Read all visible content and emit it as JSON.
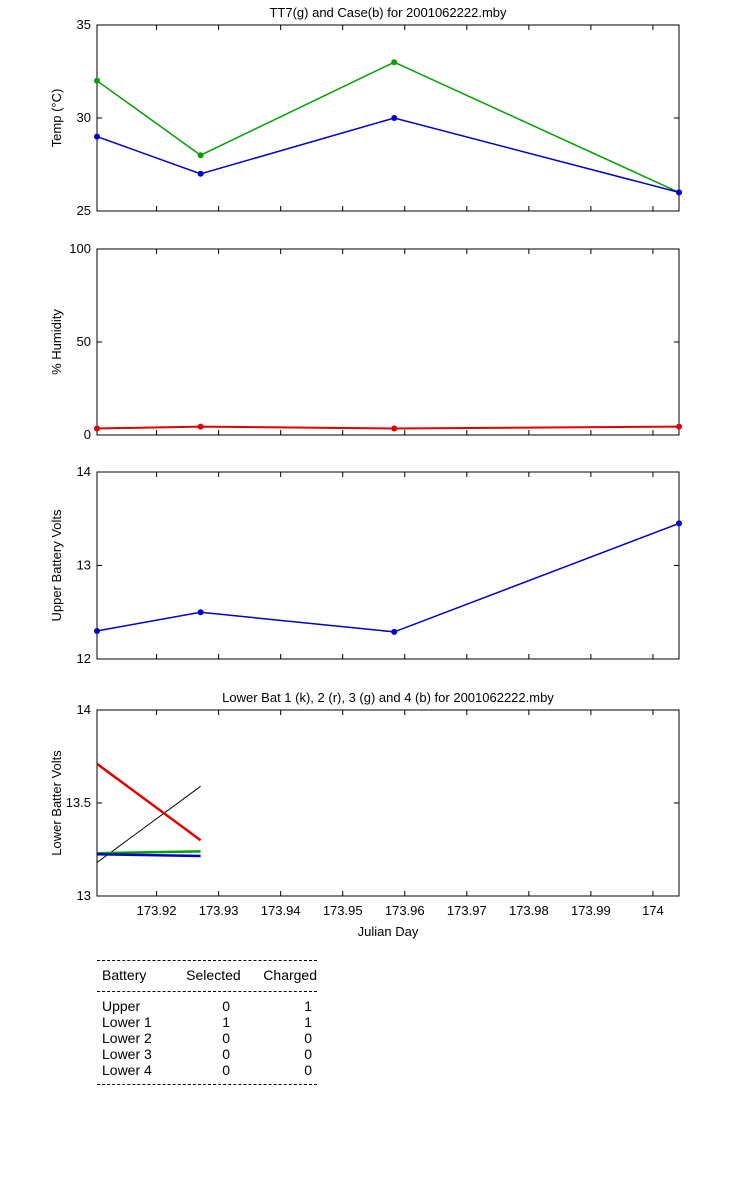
{
  "chart_data": [
    {
      "type": "line",
      "title": "TT7(g) and Case(b) for 2001062222.mby",
      "xlabel": "",
      "ylabel": "Temp  (°C)",
      "x": [
        173.9104,
        173.9271,
        173.9583,
        174.0042
      ],
      "xlim": [
        173.9104,
        174.0042
      ],
      "ylim": [
        25,
        35
      ],
      "yticks": [
        25,
        30,
        35
      ],
      "xticks": [
        173.92,
        173.93,
        173.94,
        173.95,
        173.96,
        173.97,
        173.98,
        173.99,
        174
      ],
      "show_xticklabels": false,
      "series": [
        {
          "color": "#00a000",
          "values": [
            32,
            28,
            33,
            26
          ],
          "markers": true
        },
        {
          "color": "#0000cc",
          "values": [
            29,
            27,
            30,
            26
          ],
          "markers": true
        }
      ]
    },
    {
      "type": "line",
      "title": "",
      "xlabel": "",
      "ylabel": "% Humidity",
      "x": [
        173.9104,
        173.9271,
        173.9583,
        174.0042
      ],
      "xlim": [
        173.9104,
        174.0042
      ],
      "ylim": [
        0,
        100
      ],
      "yticks": [
        0,
        50,
        100
      ],
      "xticks": [
        173.92,
        173.93,
        173.94,
        173.95,
        173.96,
        173.97,
        173.98,
        173.99,
        174
      ],
      "show_xticklabels": false,
      "series": [
        {
          "color": "#e00000",
          "values": [
            3.5,
            4.5,
            3.5,
            4.5
          ],
          "markers": true,
          "width": 2
        }
      ]
    },
    {
      "type": "line",
      "title": "",
      "xlabel": "",
      "ylabel": "Upper Battery Volts",
      "x": [
        173.9104,
        173.9271,
        173.9583,
        174.0042
      ],
      "xlim": [
        173.9104,
        174.0042
      ],
      "ylim": [
        12,
        14
      ],
      "yticks": [
        12,
        13,
        14
      ],
      "xticks": [
        173.92,
        173.93,
        173.94,
        173.95,
        173.96,
        173.97,
        173.98,
        173.99,
        174
      ],
      "show_xticklabels": false,
      "series": [
        {
          "color": "#0000cc",
          "values": [
            12.3,
            12.5,
            12.29,
            13.45
          ],
          "markers": true
        }
      ]
    },
    {
      "type": "line",
      "title": "Lower Bat 1 (k), 2 (r), 3 (g) and 4 (b) for 2001062222.mby",
      "xlabel": "Julian Day",
      "ylabel": "Lower Batter Volts",
      "xlim": [
        173.9104,
        174.0042
      ],
      "ylim": [
        13,
        14
      ],
      "yticks": [
        13,
        13.5,
        14
      ],
      "ytick_labels": [
        "13",
        "13.5",
        "14"
      ],
      "xticks": [
        173.92,
        173.93,
        173.94,
        173.95,
        173.96,
        173.97,
        173.98,
        173.99,
        174
      ],
      "xtick_labels": [
        "173.92",
        "173.93",
        "173.94",
        "173.95",
        "173.96",
        "173.97",
        "173.98",
        "173.99",
        "174"
      ],
      "show_xticklabels": true,
      "series": [
        {
          "color": "#000000",
          "x": [
            173.9104,
            173.9271
          ],
          "values": [
            13.18,
            13.59
          ],
          "markers": false,
          "width": 1
        },
        {
          "color": "#e00000",
          "x": [
            173.9104,
            173.9271
          ],
          "values": [
            13.71,
            13.3
          ],
          "markers": false,
          "width": 2.5
        },
        {
          "color": "#00a000",
          "x": [
            173.9104,
            173.9271
          ],
          "values": [
            13.23,
            13.24
          ],
          "markers": false,
          "width": 2.5
        },
        {
          "color": "#0000cc",
          "x": [
            173.9104,
            173.9271
          ],
          "values": [
            13.225,
            13.215
          ],
          "markers": false,
          "width": 2.5
        }
      ]
    }
  ],
  "battery_table": {
    "headers": {
      "battery": "Battery",
      "selected": "Selected",
      "charged": "Charged"
    },
    "rows": [
      {
        "battery": "Upper",
        "selected": "0",
        "charged": "1"
      },
      {
        "battery": "Lower 1",
        "selected": "1",
        "charged": "1"
      },
      {
        "battery": "Lower 2",
        "selected": "0",
        "charged": "0"
      },
      {
        "battery": "Lower 3",
        "selected": "0",
        "charged": "0"
      },
      {
        "battery": "Lower 4",
        "selected": "0",
        "charged": "0"
      }
    ]
  }
}
